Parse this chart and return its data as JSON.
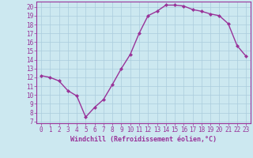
{
  "x": [
    0,
    1,
    2,
    3,
    4,
    5,
    6,
    7,
    8,
    9,
    10,
    11,
    12,
    13,
    14,
    15,
    16,
    17,
    18,
    19,
    20,
    21,
    22,
    23
  ],
  "y": [
    12.2,
    12.0,
    11.6,
    10.5,
    9.9,
    7.5,
    8.6,
    9.5,
    11.2,
    13.0,
    14.6,
    17.0,
    19.0,
    19.5,
    20.2,
    20.2,
    20.1,
    19.7,
    19.5,
    19.2,
    19.0,
    18.1,
    15.6,
    14.4
  ],
  "line_color": "#993399",
  "marker": "D",
  "marker_size": 2,
  "line_width": 1.0,
  "xlabel": "Windchill (Refroidissement éolien,°C)",
  "ylabel_ticks": [
    7,
    8,
    9,
    10,
    11,
    12,
    13,
    14,
    15,
    16,
    17,
    18,
    19,
    20
  ],
  "ylim": [
    6.8,
    20.6
  ],
  "xlim": [
    -0.5,
    23.5
  ],
  "background_color": "#cce8f0",
  "grid_color": "#aaccdd",
  "tick_color": "#993399",
  "label_color": "#993399",
  "tick_fontsize": 5.5,
  "xlabel_fontsize": 6.0
}
